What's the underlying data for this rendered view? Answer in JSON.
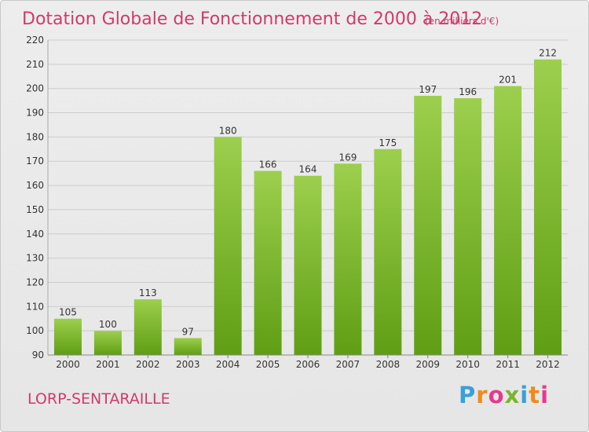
{
  "chart_data": {
    "type": "bar",
    "title": "Dotation Globale de Fonctionnement de 2000 à 2012",
    "subtitle": "(en milliers d'€)",
    "categories": [
      "2000",
      "2001",
      "2002",
      "2003",
      "2004",
      "2005",
      "2006",
      "2007",
      "2008",
      "2009",
      "2010",
      "2011",
      "2012"
    ],
    "values": [
      105,
      100,
      113,
      97,
      180,
      166,
      164,
      169,
      175,
      197,
      196,
      201,
      212
    ],
    "xlabel": "",
    "ylabel": "",
    "ylim": [
      90,
      220
    ],
    "yticks": [
      90,
      100,
      110,
      120,
      130,
      140,
      150,
      160,
      170,
      180,
      190,
      200,
      210,
      220
    ],
    "grid": true,
    "bar_color_top": "#9ccf4d",
    "bar_color_bottom": "#5f9e14"
  },
  "place_name": "LORP-SENTARAILLE",
  "logo": {
    "text": "Proxiti",
    "colors": [
      "#3aa0d8",
      "#f08a1c",
      "#e23b8f",
      "#78b72a",
      "#3aa0d8",
      "#f08a1c",
      "#e23b8f"
    ]
  },
  "colors": {
    "title": "#d03a6c",
    "place_name": "#d03a6c",
    "axis_text": "#333333",
    "grid": "#cccccc"
  }
}
